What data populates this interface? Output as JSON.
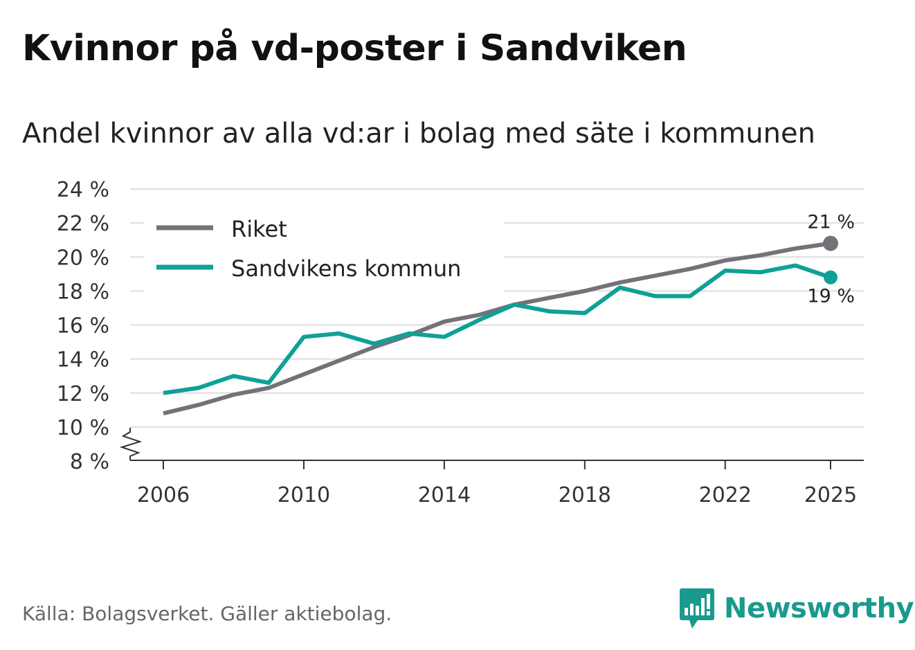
{
  "title": "Kvinnor på vd-poster i Sandviken",
  "subtitle": "Andel kvinnor av alla vd:ar i bolag med säte i kommunen",
  "source": "Källa: Bolagsverket. Gäller aktiebolag.",
  "brand": "Newsworthy",
  "colors": {
    "riket": "#737278",
    "sandviken": "#0fa097",
    "grid": "#dddddd",
    "brand": "#1a9a8e"
  },
  "chart_data": {
    "type": "line",
    "title": "Kvinnor på vd-poster i Sandviken",
    "ylabel": "",
    "xlabel": "",
    "ylim": [
      8,
      24
    ],
    "y_ticks": [
      8,
      10,
      12,
      14,
      16,
      18,
      20,
      22,
      24
    ],
    "y_tick_labels": [
      "8 %",
      "10 %",
      "12 %",
      "14 %",
      "16 %",
      "18 %",
      "20 %",
      "22 %",
      "24 %"
    ],
    "x_ticks": [
      2006,
      2010,
      2014,
      2018,
      2022,
      2025
    ],
    "x_tick_labels": [
      "2006",
      "2010",
      "2014",
      "2018",
      "2022",
      "2025"
    ],
    "x": [
      2006,
      2007,
      2008,
      2009,
      2010,
      2011,
      2012,
      2013,
      2014,
      2015,
      2016,
      2017,
      2018,
      2019,
      2020,
      2021,
      2022,
      2023,
      2024,
      2025
    ],
    "series": [
      {
        "name": "Riket",
        "color": "#737278",
        "values": [
          10.8,
          11.3,
          11.9,
          12.3,
          13.1,
          13.9,
          14.7,
          15.4,
          16.2,
          16.6,
          17.2,
          17.6,
          18.0,
          18.5,
          18.9,
          19.3,
          19.8,
          20.1,
          20.5,
          20.8
        ],
        "end_label": "21 %"
      },
      {
        "name": "Sandvikens kommun",
        "color": "#0fa097",
        "values": [
          12.0,
          12.3,
          13.0,
          12.6,
          15.3,
          15.5,
          14.9,
          15.5,
          15.3,
          16.3,
          17.2,
          16.8,
          16.7,
          18.2,
          17.7,
          17.7,
          19.2,
          19.1,
          19.5,
          18.8
        ],
        "end_label": "19 %"
      }
    ],
    "legend": [
      "Riket",
      "Sandvikens kommun"
    ],
    "legend_position": "top-left"
  }
}
